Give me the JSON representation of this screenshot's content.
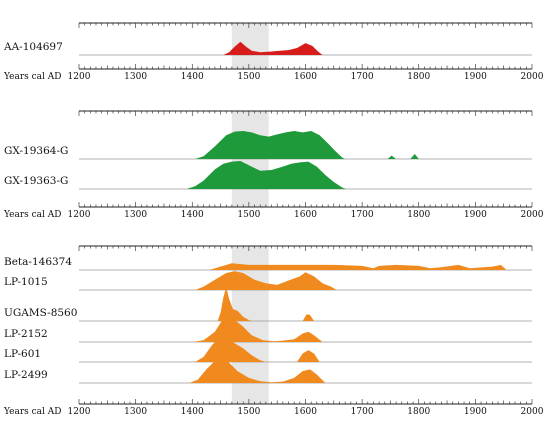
{
  "chart_data": {
    "type": "area",
    "xlabel": "Years cal AD",
    "xlim": [
      1200,
      2000
    ],
    "xticks": [
      1200,
      1300,
      1400,
      1500,
      1600,
      1700,
      1800,
      1900,
      2000
    ],
    "highlight_band": [
      1470,
      1535
    ],
    "highlight_color": "#e6e6e6",
    "panels": [
      {
        "color": "#d81c1c",
        "series": [
          {
            "name": "AA-104697",
            "points": [
              [
                1455,
                0
              ],
              [
                1465,
                0.2
              ],
              [
                1475,
                0.6
              ],
              [
                1485,
                0.95
              ],
              [
                1495,
                0.6
              ],
              [
                1505,
                0.3
              ],
              [
                1520,
                0.2
              ],
              [
                1540,
                0.25
              ],
              [
                1555,
                0.3
              ],
              [
                1570,
                0.35
              ],
              [
                1585,
                0.5
              ],
              [
                1600,
                0.85
              ],
              [
                1612,
                0.65
              ],
              [
                1622,
                0.25
              ],
              [
                1630,
                0
              ]
            ]
          }
        ]
      },
      {
        "color": "#1e9a3b",
        "series": [
          {
            "name": "GX-19364-G",
            "points": [
              [
                1405,
                0
              ],
              [
                1420,
                0.1
              ],
              [
                1440,
                0.45
              ],
              [
                1460,
                0.85
              ],
              [
                1475,
                0.98
              ],
              [
                1490,
                1.0
              ],
              [
                1505,
                0.95
              ],
              [
                1520,
                0.85
              ],
              [
                1535,
                0.8
              ],
              [
                1550,
                0.88
              ],
              [
                1565,
                0.95
              ],
              [
                1580,
                1.0
              ],
              [
                1595,
                0.95
              ],
              [
                1610,
                1.0
              ],
              [
                1625,
                0.85
              ],
              [
                1640,
                0.55
              ],
              [
                1652,
                0.3
              ],
              [
                1665,
                0.05
              ],
              [
                1670,
                0
              ],
              [
                1745,
                0
              ],
              [
                1752,
                0.12
              ],
              [
                1760,
                0
              ],
              [
                1785,
                0
              ],
              [
                1793,
                0.18
              ],
              [
                1800,
                0
              ]
            ]
          },
          {
            "name": "GX-19363-G",
            "points": [
              [
                1390,
                0
              ],
              [
                1405,
                0.1
              ],
              [
                1420,
                0.3
              ],
              [
                1440,
                0.7
              ],
              [
                1455,
                0.9
              ],
              [
                1470,
                0.98
              ],
              [
                1485,
                1.0
              ],
              [
                1500,
                0.85
              ],
              [
                1520,
                0.65
              ],
              [
                1540,
                0.68
              ],
              [
                1560,
                0.8
              ],
              [
                1575,
                0.9
              ],
              [
                1590,
                0.95
              ],
              [
                1605,
                0.98
              ],
              [
                1620,
                0.8
              ],
              [
                1635,
                0.5
              ],
              [
                1650,
                0.25
              ],
              [
                1665,
                0.05
              ],
              [
                1672,
                0
              ]
            ]
          }
        ]
      },
      {
        "color": "#f08a1e",
        "series": [
          {
            "name": "Beta-146374",
            "points": [
              [
                1430,
                0
              ],
              [
                1470,
                0.2
              ],
              [
                1500,
                0.15
              ],
              [
                1550,
                0.15
              ],
              [
                1600,
                0.15
              ],
              [
                1650,
                0.15
              ],
              [
                1700,
                0.12
              ],
              [
                1720,
                0.05
              ],
              [
                1730,
                0.12
              ],
              [
                1760,
                0.15
              ],
              [
                1800,
                0.12
              ],
              [
                1820,
                0.05
              ],
              [
                1840,
                0.08
              ],
              [
                1870,
                0.15
              ],
              [
                1890,
                0.05
              ],
              [
                1930,
                0.1
              ],
              [
                1945,
                0.15
              ],
              [
                1955,
                0
              ]
            ]
          },
          {
            "name": "LP-1015",
            "points": [
              [
                1405,
                0
              ],
              [
                1420,
                0.1
              ],
              [
                1440,
                0.3
              ],
              [
                1460,
                0.5
              ],
              [
                1475,
                0.55
              ],
              [
                1490,
                0.5
              ],
              [
                1510,
                0.3
              ],
              [
                1530,
                0.2
              ],
              [
                1550,
                0.15
              ],
              [
                1570,
                0.28
              ],
              [
                1590,
                0.4
              ],
              [
                1600,
                0.52
              ],
              [
                1615,
                0.4
              ],
              [
                1630,
                0.2
              ],
              [
                1645,
                0.1
              ],
              [
                1655,
                0
              ]
            ]
          },
          {
            "name": "UGAMS-8560",
            "points": [
              [
                1445,
                0
              ],
              [
                1450,
                0.25
              ],
              [
                1455,
                0.7
              ],
              [
                1460,
                1.0
              ],
              [
                1465,
                0.65
              ],
              [
                1472,
                0.35
              ],
              [
                1480,
                0.3
              ],
              [
                1490,
                0.12
              ],
              [
                1500,
                0.03
              ],
              [
                1505,
                0
              ],
              [
                1595,
                0
              ],
              [
                1602,
                0.2
              ],
              [
                1608,
                0.18
              ],
              [
                1615,
                0
              ]
            ]
          },
          {
            "name": "LP-2152",
            "points": [
              [
                1400,
                0
              ],
              [
                1420,
                0.05
              ],
              [
                1440,
                0.3
              ],
              [
                1455,
                0.7
              ],
              [
                1465,
                0.8
              ],
              [
                1475,
                0.65
              ],
              [
                1490,
                0.45
              ],
              [
                1505,
                0.2
              ],
              [
                1525,
                0.05
              ],
              [
                1545,
                0.02
              ],
              [
                1560,
                0.04
              ],
              [
                1580,
                0.08
              ],
              [
                1595,
                0.25
              ],
              [
                1605,
                0.3
              ],
              [
                1615,
                0.2
              ],
              [
                1630,
                0
              ]
            ]
          },
          {
            "name": "LP-601",
            "points": [
              [
                1405,
                0
              ],
              [
                1420,
                0.15
              ],
              [
                1435,
                0.5
              ],
              [
                1450,
                0.75
              ],
              [
                1462,
                0.7
              ],
              [
                1475,
                0.55
              ],
              [
                1490,
                0.4
              ],
              [
                1505,
                0.2
              ],
              [
                1520,
                0.05
              ],
              [
                1530,
                0
              ],
              [
                1585,
                0
              ],
              [
                1595,
                0.25
              ],
              [
                1605,
                0.35
              ],
              [
                1615,
                0.25
              ],
              [
                1625,
                0
              ]
            ]
          },
          {
            "name": "LP-2499",
            "points": [
              [
                1395,
                0
              ],
              [
                1410,
                0.1
              ],
              [
                1425,
                0.4
              ],
              [
                1440,
                0.65
              ],
              [
                1452,
                0.75
              ],
              [
                1465,
                0.6
              ],
              [
                1480,
                0.35
              ],
              [
                1500,
                0.15
              ],
              [
                1520,
                0.05
              ],
              [
                1540,
                0.02
              ],
              [
                1560,
                0.04
              ],
              [
                1580,
                0.15
              ],
              [
                1595,
                0.35
              ],
              [
                1608,
                0.4
              ],
              [
                1620,
                0.25
              ],
              [
                1635,
                0
              ]
            ]
          }
        ]
      }
    ]
  }
}
